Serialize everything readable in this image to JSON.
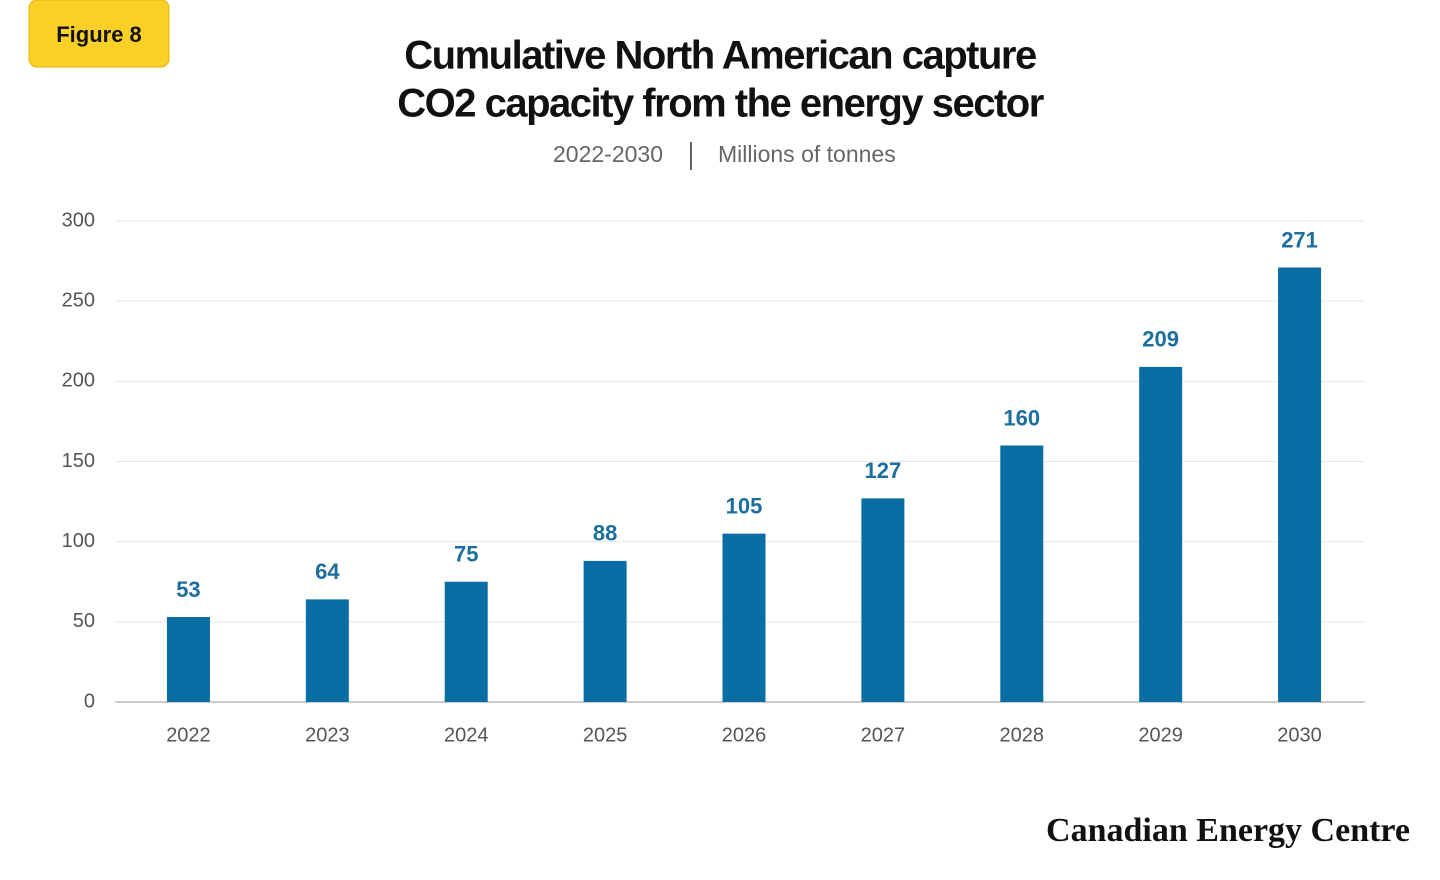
{
  "chart_data": {
    "type": "bar",
    "figure_label": "Figure 8",
    "title": [
      "Cumulative North American capture",
      "CO2 capacity from the energy sector"
    ],
    "subtitle": [
      "2022-2030",
      "Millions of tonnes"
    ],
    "source": "Canadian Energy Centre",
    "categories": [
      "2022",
      "2023",
      "2024",
      "2025",
      "2026",
      "2027",
      "2028",
      "2029",
      "2030"
    ],
    "values": [
      53,
      64,
      75,
      88,
      105,
      127,
      160,
      209,
      271
    ],
    "color": "#0a6ea4",
    "ylim": [
      0,
      300
    ],
    "yticks": [
      0,
      50,
      100,
      150,
      200,
      250,
      300
    ],
    "grid": true
  }
}
